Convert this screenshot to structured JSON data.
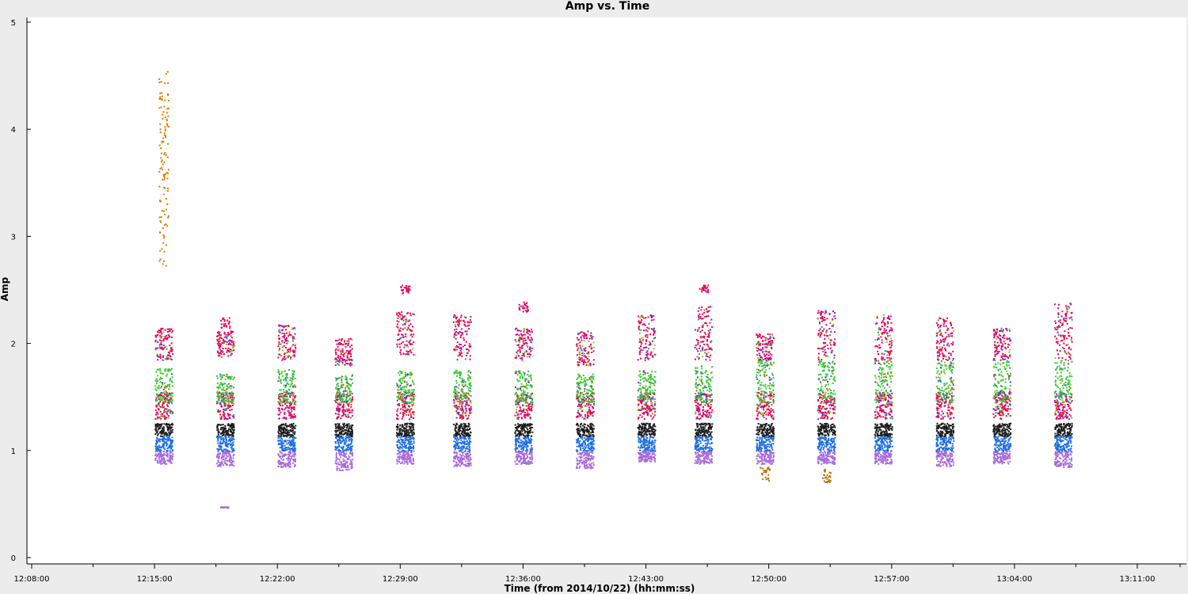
{
  "chart_data": {
    "type": "scatter",
    "title": "Amp vs. Time",
    "xlabel": "Time (from 2014/10/22) (hh:mm:ss)",
    "ylabel": "Amp",
    "xlim": [
      "12:08:00",
      "13:13:00"
    ],
    "ylim": [
      0,
      5
    ],
    "x_tick_labels": [
      "12:08:00",
      "12:15:00",
      "12:22:00",
      "12:29:00",
      "12:36:00",
      "12:43:00",
      "12:50:00",
      "12:57:00",
      "13:04:00",
      "13:11:00"
    ],
    "y_tick_labels": [
      "0",
      "1",
      "2",
      "3",
      "4",
      "5"
    ],
    "grid": false,
    "scans": [
      {
        "time": "12:15:30",
        "ranges": [
          [
            0.88,
            1.0
          ],
          [
            1.0,
            1.14
          ],
          [
            1.14,
            1.26
          ],
          [
            1.3,
            1.55
          ],
          [
            1.45,
            1.78
          ],
          [
            1.85,
            2.15
          ]
        ],
        "extra": [
          [
            2.7,
            4.55
          ]
        ]
      },
      {
        "time": "12:19:00",
        "ranges": [
          [
            0.86,
            1.0
          ],
          [
            1.0,
            1.14
          ],
          [
            1.14,
            1.26
          ],
          [
            1.3,
            1.55
          ],
          [
            1.45,
            1.72
          ],
          [
            1.88,
            2.12
          ]
        ],
        "extra": [
          [
            2.15,
            2.25
          ],
          [
            0.47,
            0.48
          ]
        ]
      },
      {
        "time": "12:22:30",
        "ranges": [
          [
            0.85,
            1.0
          ],
          [
            1.0,
            1.14
          ],
          [
            1.14,
            1.26
          ],
          [
            1.3,
            1.55
          ],
          [
            1.45,
            1.76
          ],
          [
            1.85,
            2.18
          ]
        ],
        "extra": []
      },
      {
        "time": "12:25:45",
        "ranges": [
          [
            0.82,
            1.0
          ],
          [
            1.0,
            1.14
          ],
          [
            1.14,
            1.26
          ],
          [
            1.3,
            1.55
          ],
          [
            1.45,
            1.72
          ],
          [
            1.8,
            2.05
          ]
        ],
        "extra": []
      },
      {
        "time": "12:29:15",
        "ranges": [
          [
            0.88,
            1.0
          ],
          [
            1.0,
            1.14
          ],
          [
            1.14,
            1.26
          ],
          [
            1.3,
            1.55
          ],
          [
            1.45,
            1.75
          ],
          [
            1.9,
            2.3
          ]
        ],
        "extra": [
          [
            2.47,
            2.55
          ]
        ]
      },
      {
        "time": "12:32:30",
        "ranges": [
          [
            0.86,
            1.0
          ],
          [
            1.0,
            1.14
          ],
          [
            1.14,
            1.26
          ],
          [
            1.3,
            1.55
          ],
          [
            1.45,
            1.76
          ],
          [
            1.85,
            2.28
          ]
        ],
        "extra": []
      },
      {
        "time": "12:36:00",
        "ranges": [
          [
            0.88,
            1.0
          ],
          [
            1.0,
            1.14
          ],
          [
            1.14,
            1.26
          ],
          [
            1.3,
            1.55
          ],
          [
            1.45,
            1.75
          ],
          [
            1.85,
            2.15
          ]
        ],
        "extra": [
          [
            2.3,
            2.4
          ]
        ]
      },
      {
        "time": "12:39:30",
        "ranges": [
          [
            0.84,
            1.0
          ],
          [
            1.0,
            1.14
          ],
          [
            1.14,
            1.26
          ],
          [
            1.3,
            1.55
          ],
          [
            1.45,
            1.72
          ],
          [
            1.8,
            2.12
          ]
        ],
        "extra": []
      },
      {
        "time": "12:43:00",
        "ranges": [
          [
            0.9,
            1.0
          ],
          [
            1.0,
            1.14
          ],
          [
            1.14,
            1.26
          ],
          [
            1.3,
            1.55
          ],
          [
            1.45,
            1.75
          ],
          [
            1.85,
            2.28
          ]
        ],
        "extra": []
      },
      {
        "time": "12:46:15",
        "ranges": [
          [
            0.88,
            1.0
          ],
          [
            1.0,
            1.14
          ],
          [
            1.14,
            1.26
          ],
          [
            1.3,
            1.55
          ],
          [
            1.45,
            1.8
          ],
          [
            1.85,
            2.35
          ]
        ],
        "extra": [
          [
            2.48,
            2.55
          ]
        ]
      },
      {
        "time": "12:49:45",
        "ranges": [
          [
            0.88,
            1.0
          ],
          [
            1.0,
            1.14
          ],
          [
            1.14,
            1.26
          ],
          [
            1.3,
            1.55
          ],
          [
            1.45,
            1.85
          ],
          [
            1.85,
            2.1
          ]
        ],
        "extra": [
          [
            0.72,
            0.85
          ]
        ]
      },
      {
        "time": "12:53:15",
        "ranges": [
          [
            0.88,
            1.0
          ],
          [
            1.0,
            1.14
          ],
          [
            1.14,
            1.26
          ],
          [
            1.3,
            1.55
          ],
          [
            1.45,
            1.85
          ],
          [
            1.85,
            2.32
          ]
        ],
        "extra": [
          [
            0.7,
            0.83
          ]
        ]
      },
      {
        "time": "12:56:30",
        "ranges": [
          [
            0.88,
            1.0
          ],
          [
            1.0,
            1.14
          ],
          [
            1.14,
            1.26
          ],
          [
            1.3,
            1.55
          ],
          [
            1.45,
            1.85
          ],
          [
            1.85,
            2.28
          ]
        ],
        "extra": []
      },
      {
        "time": "13:00:00",
        "ranges": [
          [
            0.86,
            1.0
          ],
          [
            1.0,
            1.14
          ],
          [
            1.14,
            1.26
          ],
          [
            1.3,
            1.55
          ],
          [
            1.45,
            1.85
          ],
          [
            1.85,
            2.25
          ]
        ],
        "extra": []
      },
      {
        "time": "13:03:15",
        "ranges": [
          [
            0.88,
            1.0
          ],
          [
            1.0,
            1.14
          ],
          [
            1.14,
            1.26
          ],
          [
            1.3,
            1.55
          ],
          [
            1.45,
            1.85
          ],
          [
            1.85,
            2.15
          ]
        ],
        "extra": []
      },
      {
        "time": "13:06:45",
        "ranges": [
          [
            0.85,
            1.0
          ],
          [
            1.0,
            1.14
          ],
          [
            1.14,
            1.26
          ],
          [
            1.3,
            1.55
          ],
          [
            1.45,
            1.85
          ],
          [
            1.85,
            2.38
          ]
        ],
        "extra": []
      }
    ],
    "series_colors": [
      "#a86bdb",
      "#1f6fe0",
      "#1c1c1c",
      "#e8005c",
      "#33cc33",
      "#e8005c"
    ],
    "accent_colors": [
      "#b86b00",
      "#7a1fe8",
      "#159c9c",
      "#8fbf2a"
    ]
  }
}
